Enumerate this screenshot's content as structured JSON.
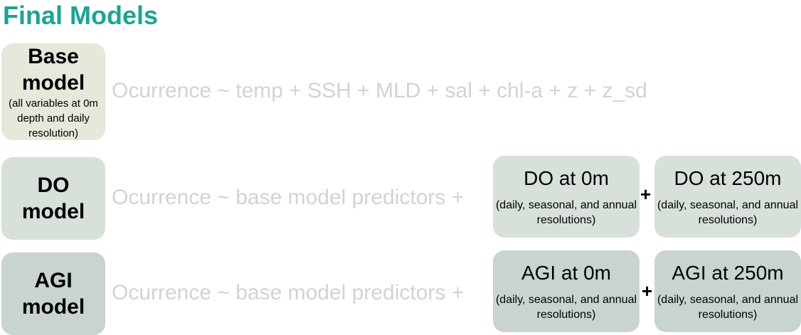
{
  "title": "Final Models",
  "base": {
    "name": "Base model",
    "note": "(all variables at 0m depth and daily resolution)",
    "formula": "Ocurrence ~ temp + SSH + MLD + sal + chl-a + z + z_sd"
  },
  "do": {
    "name": "DO model",
    "formula": "Ocurrence ~ base model predictors +",
    "plus": "+",
    "pred_0": {
      "name": "DO at 0m",
      "note": "(daily, seasonal, and annual resolutions)"
    },
    "pred_250": {
      "name": "DO at 250m",
      "note": "(daily, seasonal, and annual resolutions)"
    }
  },
  "agi": {
    "name": "AGI model",
    "formula": "Ocurrence ~ base model predictors +",
    "plus": "+",
    "pred_0": {
      "name": "AGI at 0m",
      "note": "(daily, seasonal, and annual resolutions)"
    },
    "pred_250": {
      "name": "AGI at 250m",
      "note": "(daily, seasonal, and annual resolutions)"
    }
  },
  "colors": {
    "title": "#1aa594",
    "base_box": "#e5e8da",
    "do_box": "#d8e0da",
    "agi_box": "#c9d4d2",
    "formula_text": "#d3d3d3"
  }
}
